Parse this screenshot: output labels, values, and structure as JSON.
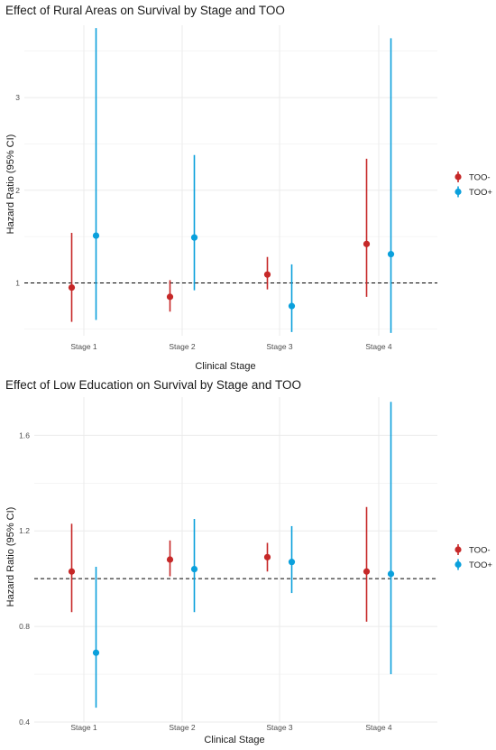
{
  "colors": {
    "too_minus": "#c62828",
    "too_plus": "#0aa0dc",
    "grid": "#ebebeb",
    "reference": "#000000"
  },
  "chart_data": [
    {
      "type": "scatter",
      "title": "Effect of Rural Areas on Survival by Stage and TOO",
      "xlabel": "Clinical Stage",
      "ylabel": "Hazard Ratio (95% CI)",
      "categories": [
        "Stage 1",
        "Stage 2",
        "Stage 3",
        "Stage 4"
      ],
      "yticks": [
        1,
        2,
        3
      ],
      "ylim": [
        0.43,
        3.78
      ],
      "reference_line": 1,
      "series": [
        {
          "name": "TOO-",
          "estimate": [
            0.95,
            0.85,
            1.09,
            1.42
          ],
          "lower": [
            0.58,
            0.69,
            0.93,
            0.85
          ],
          "upper": [
            1.54,
            1.03,
            1.28,
            2.34
          ]
        },
        {
          "name": "TOO+",
          "estimate": [
            1.51,
            1.49,
            0.75,
            1.31
          ],
          "lower": [
            0.6,
            0.92,
            0.47,
            0.46
          ],
          "upper": [
            3.75,
            2.38,
            1.2,
            3.64
          ]
        }
      ],
      "legend": "right"
    },
    {
      "type": "scatter",
      "title": "Effect of Low Education on Survival by Stage and TOO",
      "xlabel": "Clinical Stage",
      "ylabel": "Hazard Ratio (95% CI)",
      "categories": [
        "Stage 1",
        "Stage 2",
        "Stage 3",
        "Stage 4"
      ],
      "yticks": [
        "0.4",
        "0.8",
        "1.2",
        "1.6"
      ],
      "ylim": [
        0.4,
        1.76
      ],
      "reference_line": 1,
      "series": [
        {
          "name": "TOO-",
          "estimate": [
            1.03,
            1.08,
            1.09,
            1.03
          ],
          "lower": [
            0.86,
            1.01,
            1.03,
            0.82
          ],
          "upper": [
            1.23,
            1.16,
            1.15,
            1.3
          ]
        },
        {
          "name": "TOO+",
          "estimate": [
            0.69,
            1.04,
            1.07,
            1.02
          ],
          "lower": [
            0.46,
            0.86,
            0.94,
            0.6
          ],
          "upper": [
            1.05,
            1.25,
            1.22,
            1.74
          ]
        }
      ],
      "legend": "right"
    }
  ]
}
